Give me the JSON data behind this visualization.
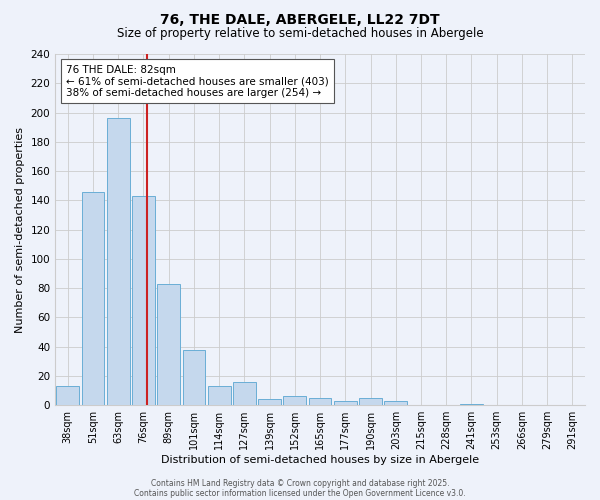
{
  "title": "76, THE DALE, ABERGELE, LL22 7DT",
  "subtitle": "Size of property relative to semi-detached houses in Abergele",
  "xlabel": "Distribution of semi-detached houses by size in Abergele",
  "ylabel": "Number of semi-detached properties",
  "categories": [
    "38sqm",
    "51sqm",
    "63sqm",
    "76sqm",
    "89sqm",
    "101sqm",
    "114sqm",
    "127sqm",
    "139sqm",
    "152sqm",
    "165sqm",
    "177sqm",
    "190sqm",
    "203sqm",
    "215sqm",
    "228sqm",
    "241sqm",
    "253sqm",
    "266sqm",
    "279sqm",
    "291sqm"
  ],
  "values": [
    13,
    146,
    196,
    143,
    83,
    38,
    13,
    16,
    4,
    6,
    5,
    3,
    5,
    3,
    0,
    0,
    1,
    0,
    0,
    0,
    0
  ],
  "bar_color": "#c5d8ed",
  "bar_edge_color": "#6aaed6",
  "background_color": "#eef2fa",
  "annotation_title": "76 THE DALE: 82sqm",
  "annotation_line1": "← 61% of semi-detached houses are smaller (403)",
  "annotation_line2": "38% of semi-detached houses are larger (254) →",
  "annotation_box_color": "#ffffff",
  "annotation_box_edge": "#555555",
  "ylim": [
    0,
    240
  ],
  "yticks": [
    0,
    20,
    40,
    60,
    80,
    100,
    120,
    140,
    160,
    180,
    200,
    220,
    240
  ],
  "red_line_index": 3,
  "footer1": "Contains HM Land Registry data © Crown copyright and database right 2025.",
  "footer2": "Contains public sector information licensed under the Open Government Licence v3.0."
}
